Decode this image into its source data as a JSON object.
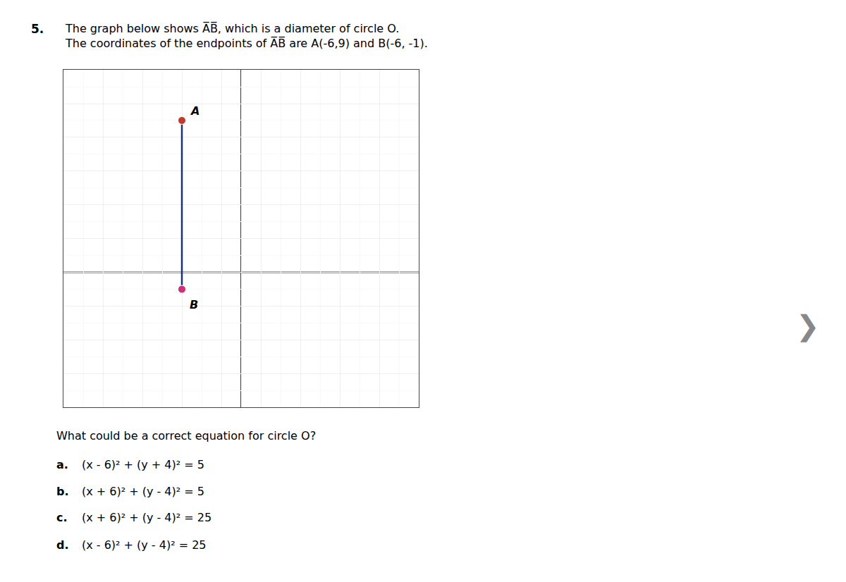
{
  "chart_data": {
    "type": "line",
    "title_number": "5.",
    "title": "The graph below shows A̅B̅, which is a diameter of circle O. The coordinates of the endpoints of A̅B̅ are A(-6,9) and B(-6, -1).",
    "series": [
      {
        "type": "line",
        "x": [
          -6,
          -6
        ],
        "y": [
          9,
          -1
        ],
        "color": "#1a3080"
      },
      {
        "type": "scatter",
        "x": [
          -6
        ],
        "y": [
          9
        ],
        "color": "#c0392b",
        "marker": "circle",
        "label": "A",
        "label_position": "above"
      },
      {
        "type": "scatter",
        "x": [
          -6
        ],
        "y": [
          -1
        ],
        "color": "#cc3377",
        "marker": "circle",
        "label": "B",
        "label_position": "below"
      }
    ],
    "xlim": [
      -12,
      6
    ],
    "ylim": [
      -8,
      12
    ],
    "xticks": [
      -12,
      -10,
      -8,
      -6,
      -4,
      -2,
      0,
      2,
      4,
      6
    ],
    "yticks": [
      -8,
      -6,
      -4,
      -2,
      0,
      2,
      4,
      6,
      8,
      10,
      12
    ],
    "minor_xticks": [
      -12,
      -11,
      -10,
      -9,
      -8,
      -7,
      -6,
      -5,
      -4,
      -3,
      -2,
      -1,
      0,
      1,
      2,
      3,
      4,
      5,
      6
    ],
    "minor_yticks": [
      -8,
      -7,
      -6,
      -5,
      -4,
      -3,
      -2,
      -1,
      0,
      1,
      2,
      3,
      4,
      5,
      6,
      7,
      8,
      9,
      10,
      11,
      12
    ],
    "hline": 0,
    "vline": -3,
    "grid": true,
    "tick_labels": false,
    "question": "What could be a correct equation for circle O?",
    "answers": [
      {
        "label": "a.",
        "text": "(x - 6)² + (y + 4)² = 5"
      },
      {
        "label": "b.",
        "text": "(x + 6)² + (y - 4)² = 5"
      },
      {
        "label": "c.",
        "text": "(x + 6)² + (y - 4)² = 25"
      },
      {
        "label": "d.",
        "text": "(x - 6)² + (y - 4)² = 25"
      }
    ],
    "nav_arrow": "❯"
  }
}
